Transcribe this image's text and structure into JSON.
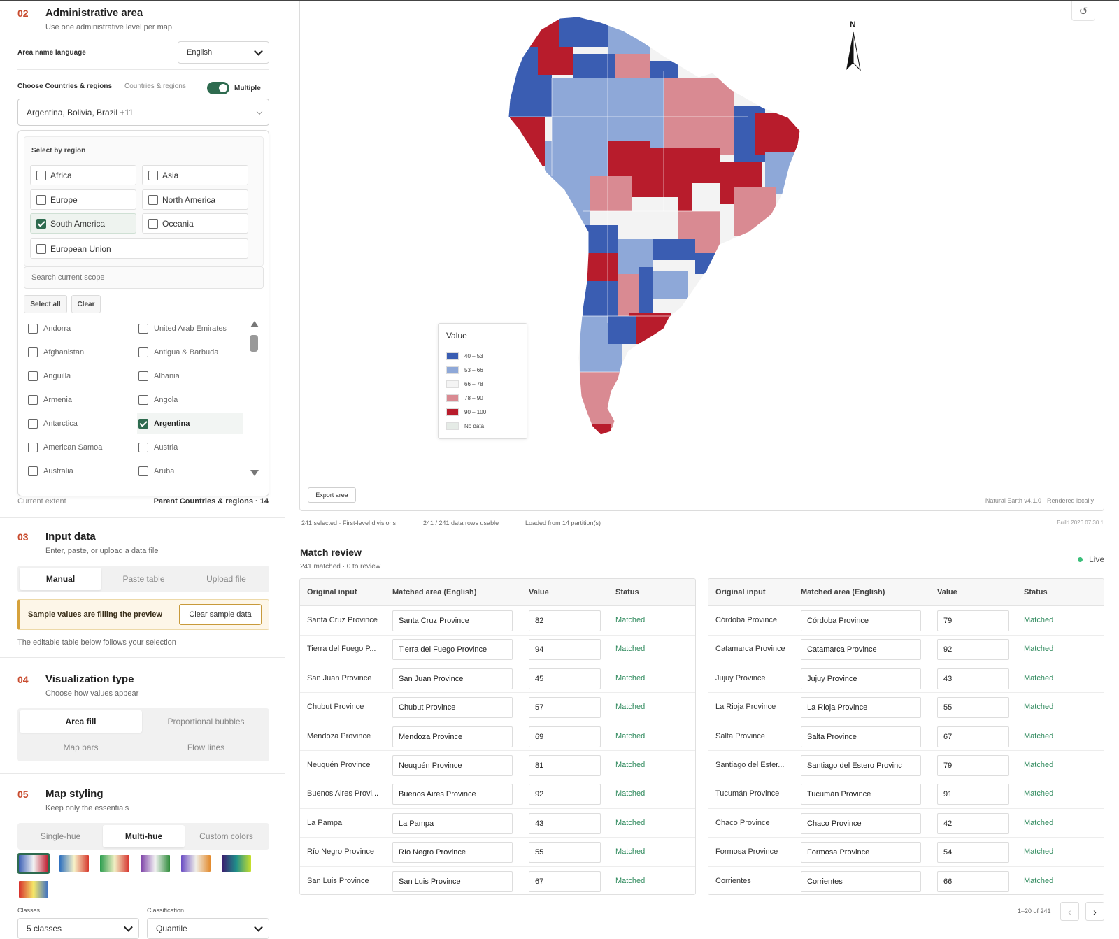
{
  "admin": {
    "num": "02",
    "title": "Administrative area",
    "subtitle": "Use one administrative level per map",
    "language_label": "Area name language",
    "language_value": "English",
    "choose_label": "Choose Countries & regions",
    "choose_scope": "Countries & regions",
    "multiple_label": "Multiple",
    "multiple_on": true,
    "selection_summary": "Argentina, Bolivia, Brazil +11",
    "select_by_region": "Select by region",
    "regions": [
      {
        "label": "Africa",
        "checked": false
      },
      {
        "label": "Asia",
        "checked": false
      },
      {
        "label": "Europe",
        "checked": false
      },
      {
        "label": "North America",
        "checked": false
      },
      {
        "label": "South America",
        "checked": true
      },
      {
        "label": "Oceania",
        "checked": false
      },
      {
        "label": "European Union",
        "checked": false
      }
    ],
    "search_placeholder": "Search current scope",
    "select_all": "Select all",
    "clear": "Clear",
    "countries": [
      {
        "label": "Andorra",
        "checked": false
      },
      {
        "label": "United Arab Emirates",
        "checked": false
      },
      {
        "label": "Afghanistan",
        "checked": false
      },
      {
        "label": "Antigua & Barbuda",
        "checked": false
      },
      {
        "label": "Anguilla",
        "checked": false
      },
      {
        "label": "Albania",
        "checked": false
      },
      {
        "label": "Armenia",
        "checked": false
      },
      {
        "label": "Angola",
        "checked": false
      },
      {
        "label": "Antarctica",
        "checked": false
      },
      {
        "label": "Argentina",
        "checked": true
      },
      {
        "label": "American Samoa",
        "checked": false
      },
      {
        "label": "Austria",
        "checked": false
      },
      {
        "label": "Australia",
        "checked": false
      },
      {
        "label": "Aruba",
        "checked": false
      }
    ],
    "current_extent_label": "Current extent",
    "current_extent_value": "Parent Countries & regions · 14"
  },
  "input": {
    "num": "03",
    "title": "Input data",
    "subtitle": "Enter, paste, or upload a data file",
    "tabs": [
      "Manual",
      "Paste table",
      "Upload file"
    ],
    "active_tab": 0,
    "notice": "Sample values are filling the preview",
    "clear_sample": "Clear sample data",
    "note": "The editable table below follows your selection"
  },
  "viz": {
    "num": "04",
    "title": "Visualization type",
    "subtitle": "Choose how values appear",
    "options": [
      "Area fill",
      "Proportional bubbles",
      "Map bars",
      "Flow lines"
    ],
    "active": 0
  },
  "styling": {
    "num": "05",
    "title": "Map styling",
    "subtitle": "Keep only the essentials",
    "tabs": [
      "Single-hue",
      "Multi-hue",
      "Custom colors"
    ],
    "active_tab": 1,
    "palettes": [
      [
        "#3b5fb6",
        "#f3f3f3",
        "#c0192c"
      ],
      [
        "#2c6fbf",
        "#f7f2c8",
        "#d7392d"
      ],
      [
        "#2a9d4e",
        "#f2efc4",
        "#d7302c"
      ],
      [
        "#7b3ea6",
        "#f2f2f2",
        "#2e8c3a"
      ],
      [
        "#6a4cc4",
        "#f0efe8",
        "#e38a2c"
      ],
      [
        "#3c1a6e",
        "#1f8f8a",
        "#c9e02c"
      ],
      [
        "#d7302c",
        "#f5e86a",
        "#3b6fc4"
      ]
    ],
    "active_palette": 0,
    "classes_label": "Classes",
    "classes_value": "5 classes",
    "classification_label": "Classification",
    "classification_value": "Quantile"
  },
  "map": {
    "north_label": "N",
    "legend_title": "Value",
    "legend": [
      {
        "label": "40 – 53",
        "color": "#3a5db2"
      },
      {
        "label": "53 – 66",
        "color": "#8ea8d8"
      },
      {
        "label": "66 – 78",
        "color": "#f4f4f4"
      },
      {
        "label": "78 – 90",
        "color": "#d98a92"
      },
      {
        "label": "90 – 100",
        "color": "#b81c2c"
      },
      {
        "label": "No data",
        "color": "#e5ebe6"
      }
    ],
    "export_label": "Export area",
    "attribution": "Natural Earth v4.1.0 · Rendered locally"
  },
  "status": {
    "selected": "241 selected · First-level divisions",
    "rows": "241 / 241 data rows usable",
    "loaded": "Loaded from 14 partition(s)",
    "build": "Build 2026.07.30.1"
  },
  "review": {
    "title": "Match review",
    "subtitle": "241 matched · 0 to review",
    "live": "Live",
    "headers": [
      "Original input",
      "Matched area (English)",
      "Value",
      "Status"
    ],
    "left": [
      {
        "orig": "Santa Cruz Province",
        "area": "Santa Cruz Province",
        "value": "82",
        "status": "Matched"
      },
      {
        "orig": "Tierra del Fuego P...",
        "area": "Tierra del Fuego Province",
        "value": "94",
        "status": "Matched"
      },
      {
        "orig": "San Juan Province",
        "area": "San Juan Province",
        "value": "45",
        "status": "Matched"
      },
      {
        "orig": "Chubut Province",
        "area": "Chubut Province",
        "value": "57",
        "status": "Matched"
      },
      {
        "orig": "Mendoza Province",
        "area": "Mendoza Province",
        "value": "69",
        "status": "Matched"
      },
      {
        "orig": "Neuquén Province",
        "area": "Neuquén Province",
        "value": "81",
        "status": "Matched"
      },
      {
        "orig": "Buenos Aires Provi...",
        "area": "Buenos Aires Province",
        "value": "92",
        "status": "Matched"
      },
      {
        "orig": "La Pampa",
        "area": "La Pampa",
        "value": "43",
        "status": "Matched"
      },
      {
        "orig": "Río Negro Province",
        "area": "Río Negro Province",
        "value": "55",
        "status": "Matched"
      },
      {
        "orig": "San Luis Province",
        "area": "San Luis Province",
        "value": "67",
        "status": "Matched"
      }
    ],
    "right": [
      {
        "orig": "Córdoba Province",
        "area": "Córdoba Province",
        "value": "79",
        "status": "Matched"
      },
      {
        "orig": "Catamarca Province",
        "area": "Catamarca Province",
        "value": "92",
        "status": "Matched"
      },
      {
        "orig": "Jujuy Province",
        "area": "Jujuy Province",
        "value": "43",
        "status": "Matched"
      },
      {
        "orig": "La Rioja Province",
        "area": "La Rioja Province",
        "value": "55",
        "status": "Matched"
      },
      {
        "orig": "Salta Province",
        "area": "Salta Province",
        "value": "67",
        "status": "Matched"
      },
      {
        "orig": "Santiago del Ester...",
        "area": "Santiago del Estero Provinc",
        "value": "79",
        "status": "Matched"
      },
      {
        "orig": "Tucumán Province",
        "area": "Tucumán Province",
        "value": "91",
        "status": "Matched"
      },
      {
        "orig": "Chaco Province",
        "area": "Chaco Province",
        "value": "42",
        "status": "Matched"
      },
      {
        "orig": "Formosa Province",
        "area": "Formosa Province",
        "value": "54",
        "status": "Matched"
      },
      {
        "orig": "Corrientes",
        "area": "Corrientes",
        "value": "66",
        "status": "Matched"
      }
    ],
    "pager_text": "1–20 of 241",
    "prev_label": "‹",
    "next_label": "›"
  }
}
